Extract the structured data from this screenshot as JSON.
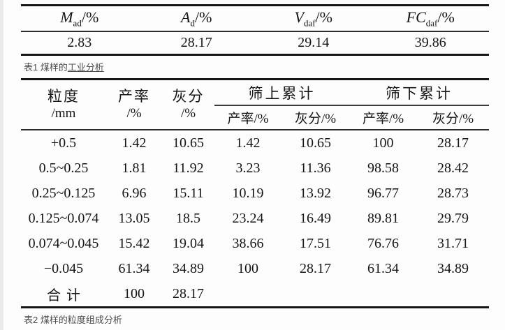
{
  "table1": {
    "headers": [
      {
        "symbol": "M",
        "subscript": "ad",
        "suffix": "/%"
      },
      {
        "symbol": "A",
        "subscript": "d",
        "suffix": "/%"
      },
      {
        "symbol": "V",
        "subscript": "daf",
        "suffix": "/%"
      },
      {
        "symbol": "FC",
        "subscript": "daf",
        "suffix": "/%"
      }
    ],
    "values": [
      "2.83",
      "28.17",
      "29.14",
      "39.86"
    ],
    "caption_prefix": "表1 煤样的",
    "caption_link": "工业分析"
  },
  "table2": {
    "col_headers": {
      "size_line1": "粒度",
      "size_line2": "/mm",
      "yield_line1": "产率",
      "yield_line2": "/%",
      "ash_line1": "灰分",
      "ash_line2": "/%",
      "oversize_group": "筛上累计",
      "undersize_group": "筛下累计",
      "sub_yield": "产率/%",
      "sub_ash": "灰分/%"
    },
    "rows": [
      [
        "+0.5",
        "1.42",
        "10.65",
        "1.42",
        "10.65",
        "100",
        "28.17"
      ],
      [
        "0.5~0.25",
        "1.81",
        "11.92",
        "3.23",
        "11.36",
        "98.58",
        "28.42"
      ],
      [
        "0.25~0.125",
        "6.96",
        "15.11",
        "10.19",
        "13.92",
        "96.77",
        "28.73"
      ],
      [
        "0.125~0.074",
        "13.05",
        "18.5",
        "23.24",
        "16.49",
        "89.81",
        "29.79"
      ],
      [
        "0.074~0.045",
        "15.42",
        "19.04",
        "38.66",
        "17.51",
        "76.76",
        "31.71"
      ],
      [
        "−0.045",
        "61.34",
        "34.89",
        "100",
        "28.17",
        "61.34",
        "34.89"
      ],
      [
        "合计",
        "100",
        "28.17",
        "",
        "",
        "",
        ""
      ]
    ],
    "caption": "表2 煤样的粒度组成分析"
  },
  "colors": {
    "rule": "#161616",
    "text": "#151515",
    "caption": "#4d4d4d"
  }
}
